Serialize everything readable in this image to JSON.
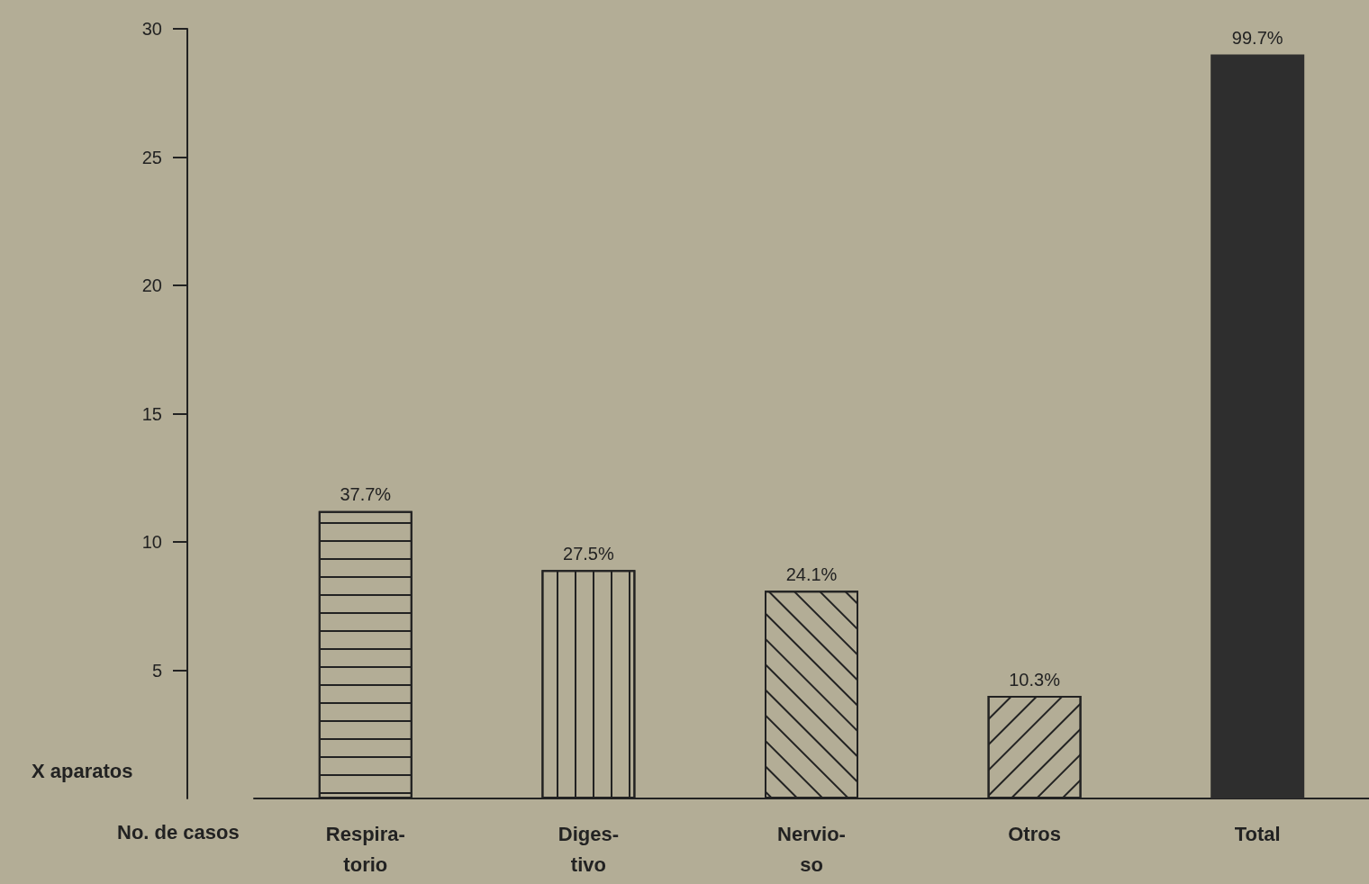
{
  "chart_data": {
    "type": "bar",
    "xlabel": "No. de casos",
    "ylabel": "X aparatos",
    "categories": [
      "Respira-\ntorio",
      "Diges-\ntivo",
      "Nervio-\nso",
      "Otros",
      "Total"
    ],
    "values": [
      11.2,
      8.9,
      8.1,
      4.0,
      29.0
    ],
    "annotations": [
      {
        "text": "37.7%",
        "x": "Respira-\ntorio",
        "y": 11.2
      },
      {
        "text": "27.5%",
        "x": "Diges-\ntivo",
        "y": 8.9
      },
      {
        "text": "24.1%",
        "x": "Nervio-\nso",
        "y": 8.1
      },
      {
        "text": "10.3%",
        "x": "Otros",
        "y": 4.0
      },
      {
        "text": "99.7%",
        "x": "Total",
        "y": 29.0
      }
    ],
    "colors": [
      "#b3ad96",
      "#b3ad96",
      "#b3ad96",
      "#b3ad96",
      "#2e2e2e"
    ],
    "ylim": [
      0,
      30
    ],
    "yticks": [
      5,
      10,
      15,
      20,
      25,
      30
    ],
    "grid": false
  }
}
